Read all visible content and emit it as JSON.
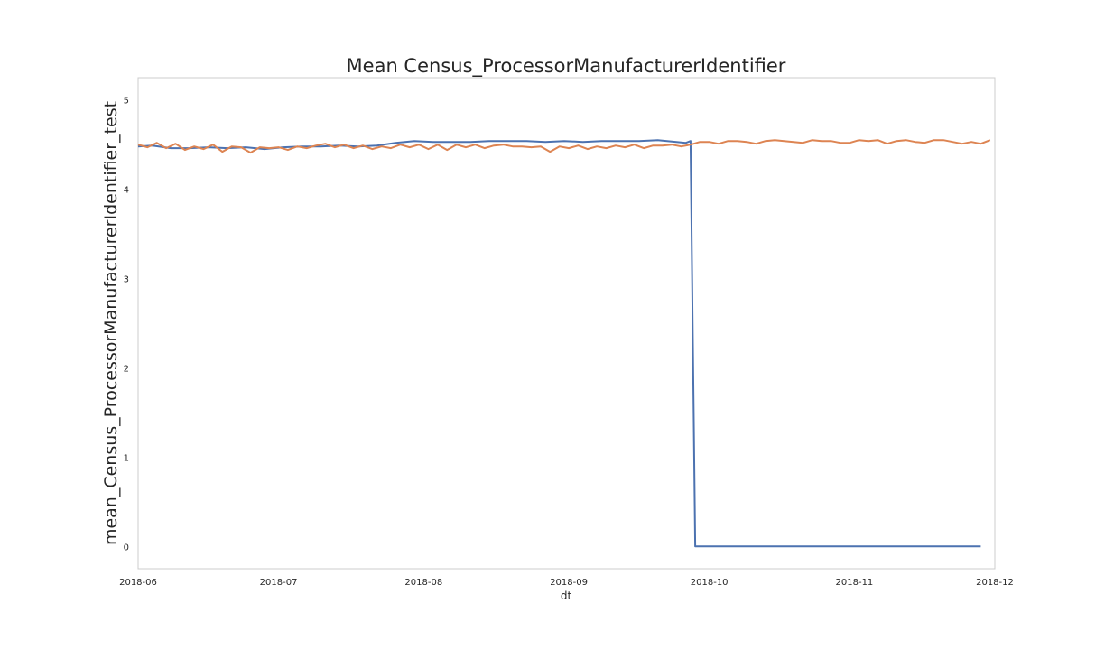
{
  "chart_data": {
    "type": "line",
    "title": "Mean Census_ProcessorManufacturerIdentifier",
    "xlabel": "dt",
    "ylabel": "mean_Census_ProcessorManufacturerIdentifier_test",
    "x_axis_type": "date",
    "xlim": [
      "2018-06-01",
      "2018-12-01"
    ],
    "ylim": [
      -0.25,
      5.25
    ],
    "x_ticks": [
      "2018-06",
      "2018-07",
      "2018-08",
      "2018-09",
      "2018-10",
      "2018-11",
      "2018-12"
    ],
    "y_ticks": [
      0,
      1,
      2,
      3,
      4,
      5
    ],
    "grid": false,
    "legend": "none",
    "series": [
      {
        "color": "#4c72b0",
        "points": [
          [
            "2018-06-01",
            4.48
          ],
          [
            "2018-06-04",
            4.49
          ],
          [
            "2018-06-08",
            4.46
          ],
          [
            "2018-06-12",
            4.46
          ],
          [
            "2018-06-16",
            4.47
          ],
          [
            "2018-06-20",
            4.46
          ],
          [
            "2018-06-24",
            4.47
          ],
          [
            "2018-06-28",
            4.45
          ],
          [
            "2018-07-02",
            4.47
          ],
          [
            "2018-07-06",
            4.48
          ],
          [
            "2018-07-10",
            4.48
          ],
          [
            "2018-07-14",
            4.49
          ],
          [
            "2018-07-18",
            4.48
          ],
          [
            "2018-07-22",
            4.49
          ],
          [
            "2018-07-26",
            4.52
          ],
          [
            "2018-07-30",
            4.54
          ],
          [
            "2018-08-03",
            4.53
          ],
          [
            "2018-08-07",
            4.53
          ],
          [
            "2018-08-11",
            4.53
          ],
          [
            "2018-08-15",
            4.54
          ],
          [
            "2018-08-19",
            4.54
          ],
          [
            "2018-08-23",
            4.54
          ],
          [
            "2018-08-27",
            4.53
          ],
          [
            "2018-08-31",
            4.54
          ],
          [
            "2018-09-04",
            4.53
          ],
          [
            "2018-09-08",
            4.54
          ],
          [
            "2018-09-12",
            4.54
          ],
          [
            "2018-09-16",
            4.54
          ],
          [
            "2018-09-20",
            4.55
          ],
          [
            "2018-09-24",
            4.53
          ],
          [
            "2018-09-26",
            4.52
          ],
          [
            "2018-09-27",
            4.54
          ],
          [
            "2018-09-28",
            0.0
          ],
          [
            "2018-10-05",
            0.0
          ],
          [
            "2018-10-15",
            0.0
          ],
          [
            "2018-10-25",
            0.0
          ],
          [
            "2018-11-04",
            0.0
          ],
          [
            "2018-11-14",
            0.0
          ],
          [
            "2018-11-24",
            0.0
          ],
          [
            "2018-11-28",
            0.0
          ]
        ]
      },
      {
        "color": "#dd8452",
        "points": [
          [
            "2018-06-01",
            4.5
          ],
          [
            "2018-06-03",
            4.47
          ],
          [
            "2018-06-05",
            4.52
          ],
          [
            "2018-06-07",
            4.46
          ],
          [
            "2018-06-09",
            4.51
          ],
          [
            "2018-06-11",
            4.44
          ],
          [
            "2018-06-13",
            4.48
          ],
          [
            "2018-06-15",
            4.45
          ],
          [
            "2018-06-17",
            4.5
          ],
          [
            "2018-06-19",
            4.42
          ],
          [
            "2018-06-21",
            4.48
          ],
          [
            "2018-06-23",
            4.47
          ],
          [
            "2018-06-25",
            4.41
          ],
          [
            "2018-06-27",
            4.47
          ],
          [
            "2018-06-29",
            4.46
          ],
          [
            "2018-07-01",
            4.47
          ],
          [
            "2018-07-03",
            4.44
          ],
          [
            "2018-07-05",
            4.48
          ],
          [
            "2018-07-07",
            4.46
          ],
          [
            "2018-07-09",
            4.49
          ],
          [
            "2018-07-11",
            4.51
          ],
          [
            "2018-07-13",
            4.47
          ],
          [
            "2018-07-15",
            4.5
          ],
          [
            "2018-07-17",
            4.46
          ],
          [
            "2018-07-19",
            4.49
          ],
          [
            "2018-07-21",
            4.45
          ],
          [
            "2018-07-23",
            4.48
          ],
          [
            "2018-07-25",
            4.46
          ],
          [
            "2018-07-27",
            4.5
          ],
          [
            "2018-07-29",
            4.47
          ],
          [
            "2018-07-31",
            4.5
          ],
          [
            "2018-08-02",
            4.45
          ],
          [
            "2018-08-04",
            4.5
          ],
          [
            "2018-08-06",
            4.44
          ],
          [
            "2018-08-08",
            4.5
          ],
          [
            "2018-08-10",
            4.47
          ],
          [
            "2018-08-12",
            4.5
          ],
          [
            "2018-08-14",
            4.46
          ],
          [
            "2018-08-16",
            4.49
          ],
          [
            "2018-08-18",
            4.5
          ],
          [
            "2018-08-20",
            4.48
          ],
          [
            "2018-08-22",
            4.48
          ],
          [
            "2018-08-24",
            4.47
          ],
          [
            "2018-08-26",
            4.48
          ],
          [
            "2018-08-28",
            4.42
          ],
          [
            "2018-08-30",
            4.48
          ],
          [
            "2018-09-01",
            4.46
          ],
          [
            "2018-09-03",
            4.49
          ],
          [
            "2018-09-05",
            4.45
          ],
          [
            "2018-09-07",
            4.48
          ],
          [
            "2018-09-09",
            4.46
          ],
          [
            "2018-09-11",
            4.49
          ],
          [
            "2018-09-13",
            4.47
          ],
          [
            "2018-09-15",
            4.5
          ],
          [
            "2018-09-17",
            4.46
          ],
          [
            "2018-09-19",
            4.49
          ],
          [
            "2018-09-21",
            4.49
          ],
          [
            "2018-09-23",
            4.5
          ],
          [
            "2018-09-25",
            4.48
          ],
          [
            "2018-09-27",
            4.5
          ],
          [
            "2018-09-29",
            4.53
          ],
          [
            "2018-10-01",
            4.53
          ],
          [
            "2018-10-03",
            4.51
          ],
          [
            "2018-10-05",
            4.54
          ],
          [
            "2018-10-07",
            4.54
          ],
          [
            "2018-10-09",
            4.53
          ],
          [
            "2018-10-11",
            4.51
          ],
          [
            "2018-10-13",
            4.54
          ],
          [
            "2018-10-15",
            4.55
          ],
          [
            "2018-10-17",
            4.54
          ],
          [
            "2018-10-19",
            4.53
          ],
          [
            "2018-10-21",
            4.52
          ],
          [
            "2018-10-23",
            4.55
          ],
          [
            "2018-10-25",
            4.54
          ],
          [
            "2018-10-27",
            4.54
          ],
          [
            "2018-10-29",
            4.52
          ],
          [
            "2018-10-31",
            4.52
          ],
          [
            "2018-11-02",
            4.55
          ],
          [
            "2018-11-04",
            4.54
          ],
          [
            "2018-11-06",
            4.55
          ],
          [
            "2018-11-08",
            4.51
          ],
          [
            "2018-11-10",
            4.54
          ],
          [
            "2018-11-12",
            4.55
          ],
          [
            "2018-11-14",
            4.53
          ],
          [
            "2018-11-16",
            4.52
          ],
          [
            "2018-11-18",
            4.55
          ],
          [
            "2018-11-20",
            4.55
          ],
          [
            "2018-11-22",
            4.53
          ],
          [
            "2018-11-24",
            4.51
          ],
          [
            "2018-11-26",
            4.53
          ],
          [
            "2018-11-28",
            4.51
          ],
          [
            "2018-11-30",
            4.55
          ]
        ]
      }
    ]
  }
}
